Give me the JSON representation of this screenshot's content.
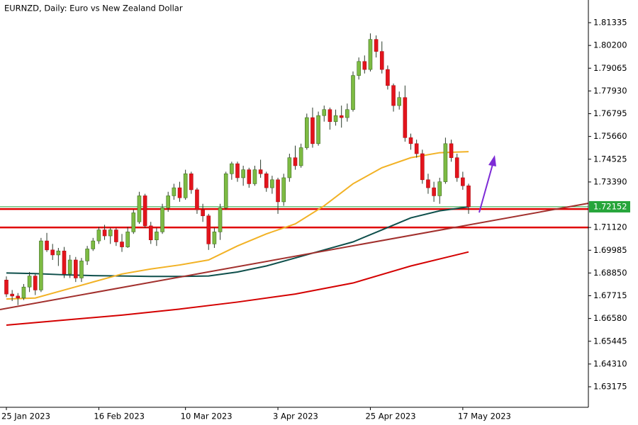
{
  "chart_data": {
    "type": "candlestick",
    "title": "EURNZD, Daily:  Euro vs New Zealand Dollar",
    "categories": [
      "25 Jan 2023",
      null,
      null,
      null,
      null,
      null,
      null,
      null,
      null,
      null,
      null,
      null,
      null,
      null,
      null,
      null,
      "16 Feb 2023",
      null,
      null,
      null,
      null,
      null,
      null,
      null,
      null,
      null,
      null,
      null,
      null,
      null,
      null,
      "10 Mar 2023",
      null,
      null,
      null,
      null,
      null,
      null,
      null,
      null,
      null,
      null,
      null,
      null,
      null,
      null,
      null,
      "3 Apr 2023",
      null,
      null,
      null,
      null,
      null,
      null,
      null,
      null,
      null,
      null,
      null,
      null,
      null,
      null,
      null,
      "25 Apr 2023",
      null,
      null,
      null,
      null,
      null,
      null,
      null,
      null,
      null,
      null,
      null,
      null,
      null,
      null,
      null,
      "17 May 2023",
      null
    ],
    "open": [
      1.685,
      1.678,
      1.677,
      1.676,
      1.6815,
      1.687,
      1.68,
      1.7045,
      1.7,
      1.6975,
      1.6995,
      1.688,
      1.695,
      1.686,
      1.6945,
      1.7005,
      1.7045,
      1.71,
      1.707,
      1.71,
      1.704,
      1.7015,
      1.709,
      1.714,
      1.727,
      1.712,
      1.705,
      1.709,
      1.721,
      1.727,
      1.731,
      1.726,
      1.738,
      1.73,
      1.72,
      1.717,
      1.703,
      1.709,
      1.721,
      1.738,
      1.743,
      1.736,
      1.74,
      1.733,
      1.74,
      1.738,
      1.731,
      1.735,
      1.724,
      1.736,
      1.746,
      1.742,
      1.751,
      1.766,
      1.753,
      1.767,
      1.77,
      1.764,
      1.767,
      1.766,
      1.77,
      1.787,
      1.794,
      1.79,
      1.805,
      1.799,
      1.79,
      1.782,
      1.772,
      1.776,
      1.756,
      1.753,
      1.748,
      1.735,
      1.731,
      1.727,
      1.734,
      1.753,
      1.746,
      1.736,
      1.732
    ],
    "high": [
      1.6868,
      1.68,
      1.6785,
      1.683,
      1.689,
      1.688,
      1.706,
      1.7085,
      1.703,
      1.701,
      1.7015,
      1.6975,
      1.6965,
      1.696,
      1.702,
      1.706,
      1.7115,
      1.7125,
      1.711,
      1.711,
      1.708,
      1.7115,
      1.72,
      1.729,
      1.728,
      1.714,
      1.711,
      1.723,
      1.729,
      1.733,
      1.734,
      1.74,
      1.739,
      1.731,
      1.723,
      1.718,
      1.711,
      1.723,
      1.739,
      1.744,
      1.744,
      1.742,
      1.741,
      1.742,
      1.745,
      1.739,
      1.737,
      1.736,
      1.738,
      1.748,
      1.752,
      1.753,
      1.768,
      1.771,
      1.769,
      1.772,
      1.771,
      1.77,
      1.772,
      1.773,
      1.789,
      1.796,
      1.797,
      1.808,
      1.807,
      1.804,
      1.792,
      1.783,
      1.779,
      1.782,
      1.758,
      1.755,
      1.75,
      1.738,
      1.734,
      1.736,
      1.756,
      1.755,
      1.748,
      1.739,
      1.733
    ],
    "low": [
      1.6765,
      1.6745,
      1.6725,
      1.675,
      1.679,
      1.6775,
      1.679,
      1.699,
      1.695,
      1.692,
      1.686,
      1.686,
      1.684,
      1.684,
      1.6925,
      1.6995,
      1.703,
      1.705,
      1.703,
      1.702,
      1.699,
      1.701,
      1.708,
      1.713,
      1.711,
      1.703,
      1.702,
      1.708,
      1.719,
      1.725,
      1.724,
      1.725,
      1.728,
      1.718,
      1.714,
      1.7,
      1.701,
      1.705,
      1.72,
      1.735,
      1.734,
      1.732,
      1.731,
      1.732,
      1.736,
      1.729,
      1.728,
      1.718,
      1.722,
      1.734,
      1.74,
      1.741,
      1.75,
      1.751,
      1.752,
      1.764,
      1.76,
      1.762,
      1.761,
      1.764,
      1.769,
      1.785,
      1.788,
      1.789,
      1.796,
      1.788,
      1.78,
      1.769,
      1.77,
      1.754,
      1.75,
      1.746,
      1.733,
      1.728,
      1.724,
      1.723,
      1.733,
      1.744,
      1.734,
      1.73,
      1.718
    ],
    "close": [
      1.678,
      1.677,
      1.676,
      1.6815,
      1.687,
      1.68,
      1.7045,
      1.7,
      1.6975,
      1.6995,
      1.688,
      1.695,
      1.686,
      1.6945,
      1.7005,
      1.7045,
      1.71,
      1.707,
      1.71,
      1.704,
      1.7015,
      1.709,
      1.7185,
      1.727,
      1.712,
      1.705,
      1.709,
      1.721,
      1.727,
      1.731,
      1.726,
      1.738,
      1.73,
      1.72,
      1.717,
      1.703,
      1.709,
      1.721,
      1.738,
      1.743,
      1.736,
      1.74,
      1.733,
      1.74,
      1.738,
      1.731,
      1.735,
      1.724,
      1.736,
      1.746,
      1.742,
      1.751,
      1.766,
      1.753,
      1.767,
      1.77,
      1.764,
      1.767,
      1.766,
      1.77,
      1.787,
      1.794,
      1.79,
      1.805,
      1.799,
      1.79,
      1.782,
      1.772,
      1.776,
      1.756,
      1.753,
      1.748,
      1.735,
      1.731,
      1.727,
      1.734,
      1.753,
      1.746,
      1.736,
      1.732,
      1.72152
    ],
    "up_color": "#7dbb43",
    "down_color": "#e3141c",
    "moving_averages": [
      {
        "color": "#0e4f4b",
        "x": [
          0,
          5,
          10,
          15,
          20,
          25,
          30,
          35,
          40,
          45,
          50,
          55,
          60,
          65,
          70,
          75,
          80
        ],
        "values": [
          1.6885,
          1.6882,
          1.6876,
          1.6872,
          1.687,
          1.6868,
          1.6868,
          1.687,
          1.689,
          1.692,
          1.696,
          1.7,
          1.704,
          1.71,
          1.716,
          1.7195,
          1.7215
        ]
      },
      {
        "color": "#f2b225",
        "x": [
          0,
          5,
          10,
          15,
          20,
          25,
          30,
          35,
          40,
          45,
          50,
          55,
          60,
          65,
          70,
          75,
          80
        ],
        "values": [
          1.6755,
          1.676,
          1.68,
          1.684,
          1.688,
          1.6905,
          1.6925,
          1.695,
          1.702,
          1.708,
          1.713,
          1.722,
          1.733,
          1.741,
          1.746,
          1.7485,
          1.749
        ]
      },
      {
        "color": "#d40000",
        "x": [
          0,
          10,
          20,
          30,
          40,
          50,
          60,
          70,
          80
        ],
        "values": [
          1.6625,
          1.665,
          1.6675,
          1.6705,
          1.674,
          1.678,
          1.6835,
          1.692,
          1.699
        ]
      }
    ],
    "levels": [
      {
        "value": 1.7204,
        "color": "#e00000"
      },
      {
        "value": 1.7112,
        "color": "#e00000"
      }
    ],
    "last_price": 1.72152,
    "last_price_color": "#26a53a",
    "ylim": [
      1.62151,
      1.82466
    ],
    "yticks": [
      1.81335,
      {
        "value": 1.802,
        "label": "1.80200"
      },
      1.79065,
      {
        "value": 1.7793,
        "label": "1.77930"
      },
      1.76795,
      {
        "value": 1.7566,
        "label": "1.75660"
      },
      {
        "value": 1.74525,
        "label": "1.74525"
      },
      {
        "value": 1.7339,
        "label": "1.73390"
      },
      {
        "value": 1.7112,
        "label": "1.71120"
      },
      1.69985,
      {
        "value": 1.6885,
        "label": "1.68850"
      },
      1.67715,
      {
        "value": 1.6658,
        "label": "1.66580"
      },
      1.65445,
      {
        "value": 1.6431,
        "label": "1.64310"
      },
      1.63175
    ]
  }
}
